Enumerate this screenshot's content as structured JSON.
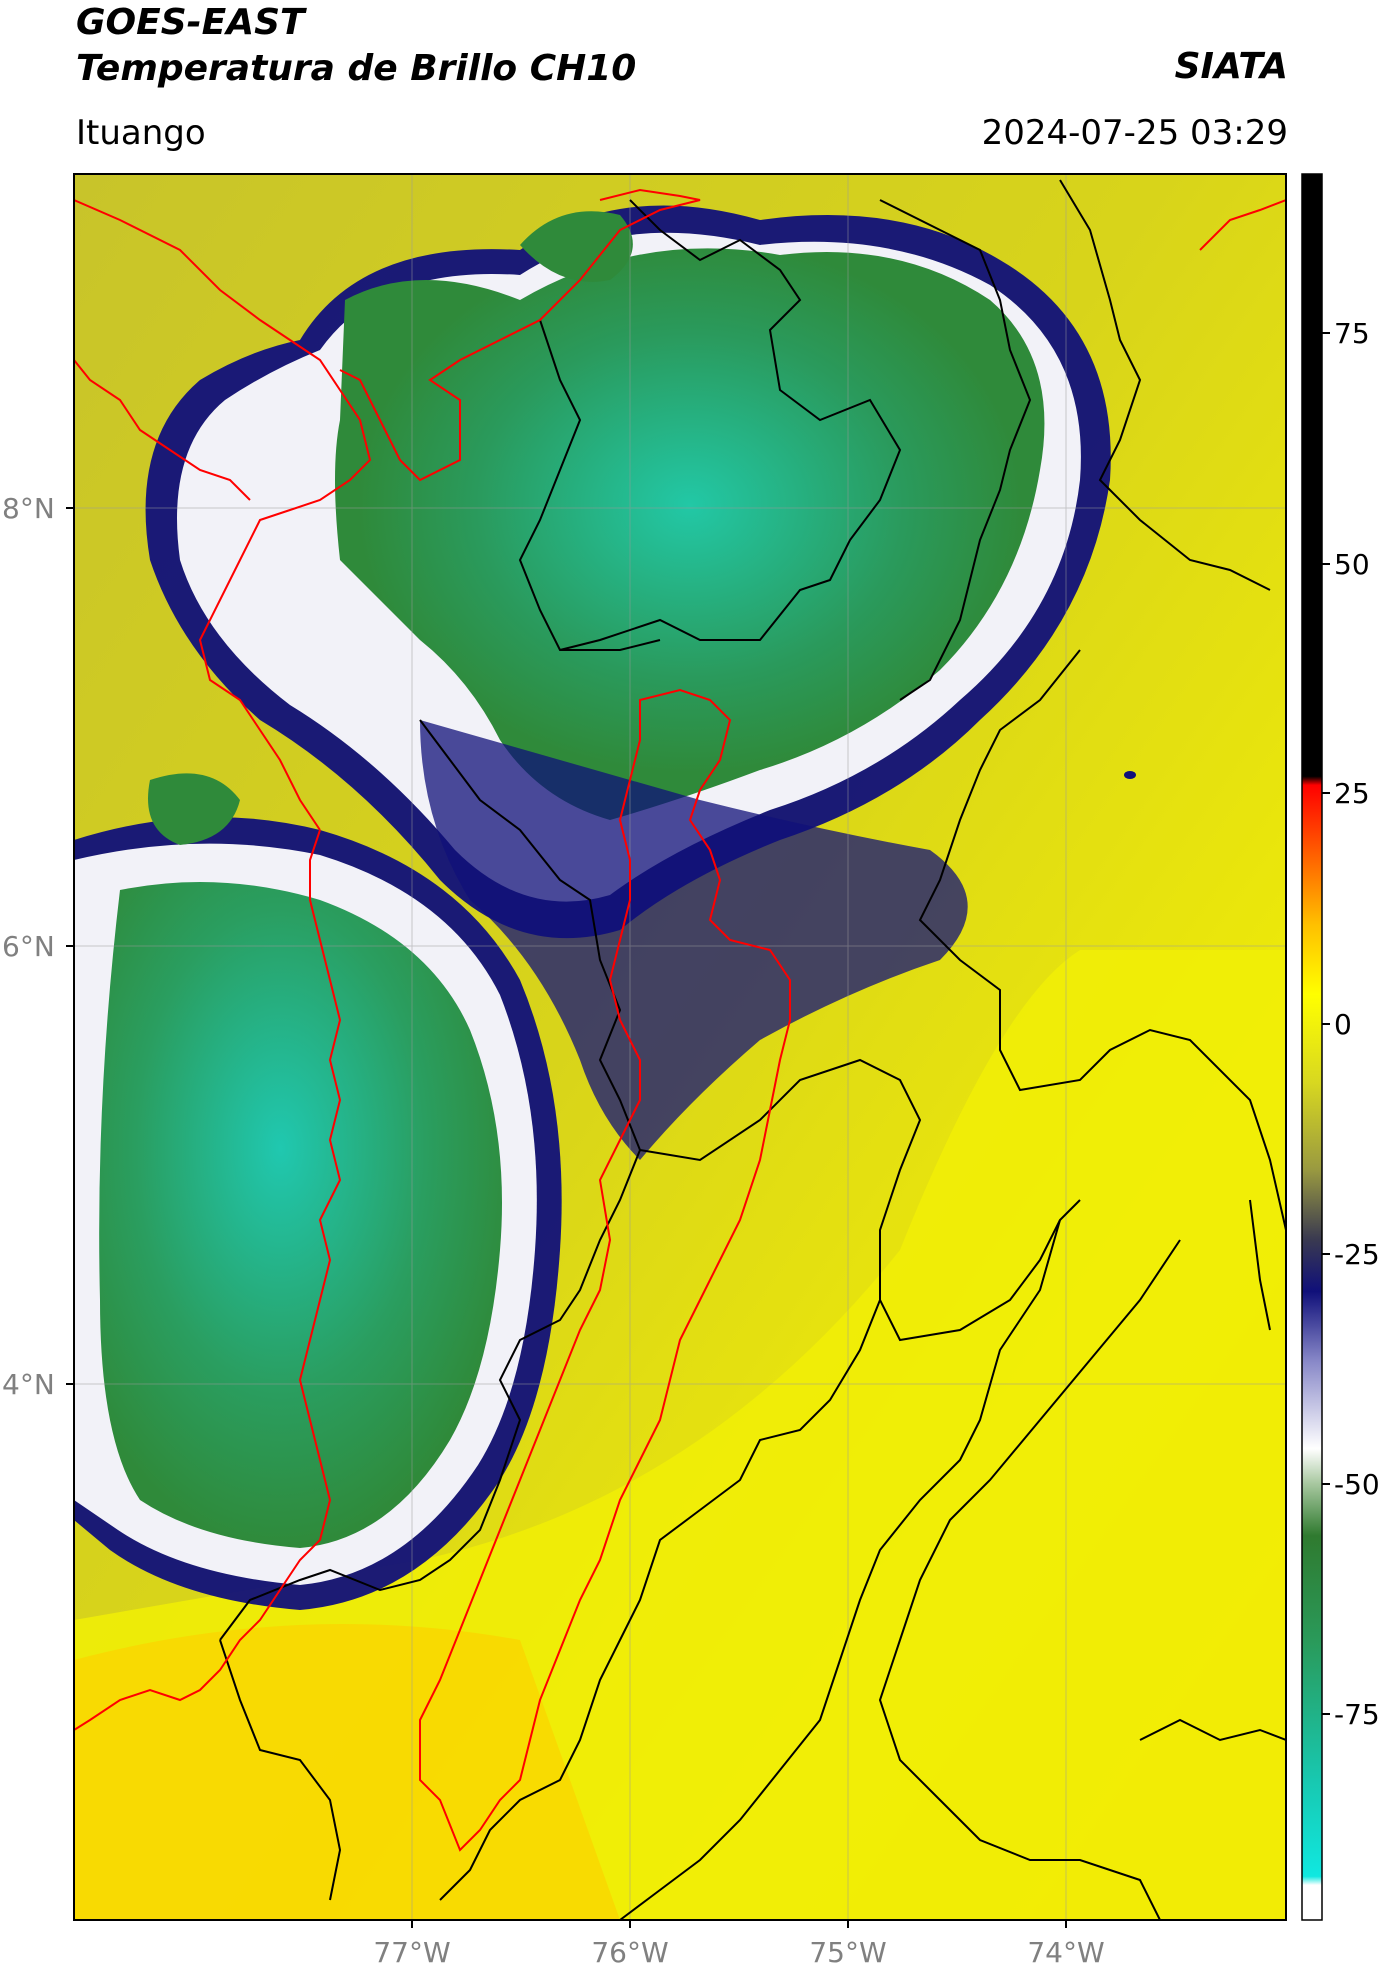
{
  "header": {
    "satellite": "GOES-EAST",
    "product": "Temperatura de Brillo CH10",
    "brand": "SIATA",
    "location": "Ituango",
    "datetime": "2024-07-25 03:29"
  },
  "map": {
    "lat_ticks": [
      {
        "label": "8°N",
        "value": 8
      },
      {
        "label": "6°N",
        "value": 6
      },
      {
        "label": "4°N",
        "value": 4
      }
    ],
    "lon_ticks": [
      {
        "label": "77°W",
        "value": -77
      },
      {
        "label": "76°W",
        "value": -76
      },
      {
        "label": "75°W",
        "value": -75
      },
      {
        "label": "74°W",
        "value": -74
      }
    ],
    "colors": {
      "warm_yellow": "#f2f000",
      "olive": "#c9c425",
      "navy": "#13137d",
      "white_ring": "#f2f2f8",
      "cloud_green": "#2a9a4f",
      "cloud_teal": "#20c3a3",
      "admin_border": "#000000",
      "antioquia_border": "#ff0000"
    }
  },
  "colorbar": {
    "ticks": [
      {
        "label": "75",
        "value": 75
      },
      {
        "label": "50",
        "value": 50
      },
      {
        "label": "25",
        "value": 25
      },
      {
        "label": "0",
        "value": 0
      },
      {
        "label": "-25",
        "value": -25
      },
      {
        "label": "-50",
        "value": -50
      },
      {
        "label": "-75",
        "value": -75
      }
    ],
    "range": [
      -100,
      90
    ]
  }
}
